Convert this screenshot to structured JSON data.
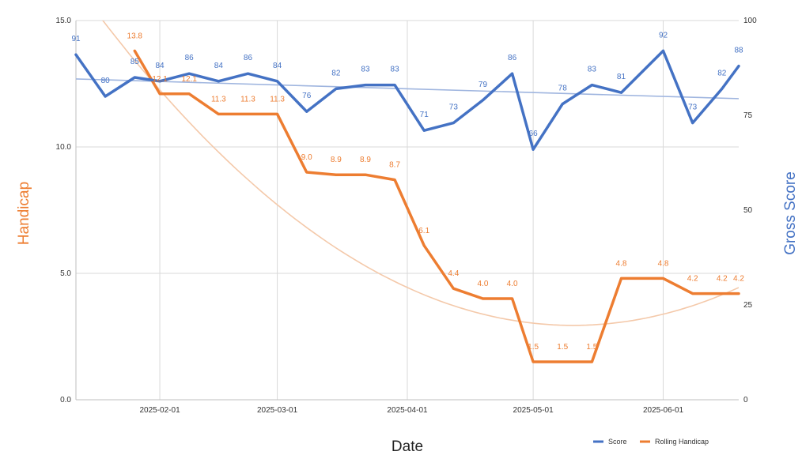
{
  "colors": {
    "score": "#4472c4",
    "handicap": "#ed7d31",
    "grid": "#d9d9d9"
  },
  "chart_data": {
    "type": "line",
    "xlabel": "Date",
    "ylabel_left": "Handicap",
    "ylabel_right": "Gross Score",
    "x_ticks": [
      "2025-02-01",
      "2025-03-01",
      "2025-04-01",
      "2025-05-01",
      "2025-06-01"
    ],
    "xlim": [
      "2025-01-12",
      "2025-06-19"
    ],
    "y_left_lim": [
      0,
      15
    ],
    "y_left_ticks": [
      "0.0",
      "5.0",
      "10.0",
      "15.0"
    ],
    "y_right_lim": [
      0,
      100
    ],
    "y_right_ticks": [
      "0",
      "25",
      "50",
      "75",
      "100"
    ],
    "grid": true,
    "legend_position": "bottom-right",
    "series": [
      {
        "name": "Score",
        "axis": "right",
        "x": [
          "2025-01-12",
          "2025-01-19",
          "2025-01-26",
          "2025-02-01",
          "2025-02-08",
          "2025-02-15",
          "2025-02-22",
          "2025-03-01",
          "2025-03-08",
          "2025-03-15",
          "2025-03-22",
          "2025-03-29",
          "2025-04-05",
          "2025-04-12",
          "2025-04-19",
          "2025-04-26",
          "2025-05-01",
          "2025-05-08",
          "2025-05-15",
          "2025-05-22",
          "2025-06-01",
          "2025-06-08",
          "2025-06-15",
          "2025-06-19"
        ],
        "values": [
          91,
          80,
          85,
          84,
          86,
          84,
          86,
          84,
          76,
          82,
          83,
          83,
          71,
          73,
          79,
          86,
          66,
          78,
          83,
          81,
          92,
          73,
          82,
          88
        ],
        "labels": [
          "91",
          "80",
          "85",
          "84",
          "86",
          "84",
          "86",
          "84",
          "76",
          "82",
          "83",
          "83",
          "71",
          "73",
          "79",
          "86",
          "66",
          "78",
          "83",
          "81",
          "92",
          "73",
          "82",
          "88"
        ]
      },
      {
        "name": "Rolling Handicap",
        "axis": "left",
        "x": [
          "2025-01-26",
          "2025-02-01",
          "2025-02-08",
          "2025-02-15",
          "2025-02-22",
          "2025-03-01",
          "2025-03-08",
          "2025-03-15",
          "2025-03-22",
          "2025-03-29",
          "2025-04-05",
          "2025-04-12",
          "2025-04-19",
          "2025-04-26",
          "2025-05-01",
          "2025-05-08",
          "2025-05-15",
          "2025-05-22",
          "2025-06-01",
          "2025-06-08",
          "2025-06-15",
          "2025-06-19"
        ],
        "values": [
          13.8,
          12.1,
          12.1,
          11.3,
          11.3,
          11.3,
          9.0,
          8.9,
          8.9,
          8.7,
          6.1,
          4.4,
          4.0,
          4.0,
          1.5,
          1.5,
          1.5,
          4.8,
          4.8,
          4.2,
          4.2,
          4.2
        ],
        "labels": [
          "13.8",
          "12.1",
          "12.1",
          "11.3",
          "11.3",
          "11.3",
          "9.0",
          "8.9",
          "8.9",
          "8.7",
          "6.1",
          "4.4",
          "4.0",
          "4.0",
          "1.5",
          "1.5",
          "1.5",
          "4.8",
          "4.8",
          "4.2",
          "4.2",
          "4.2"
        ]
      }
    ],
    "trendlines": [
      {
        "series": "Score",
        "kind": "linear",
        "axis": "right",
        "start": 84.6,
        "end": 79.4
      },
      {
        "series": "Rolling Handicap",
        "kind": "polynomial",
        "axis": "left",
        "points": [
          [
            0,
            16.42
          ],
          [
            0.5,
            4.44
          ],
          [
            0.9,
            3.48
          ],
          [
            1,
            3.6
          ]
        ]
      }
    ]
  }
}
